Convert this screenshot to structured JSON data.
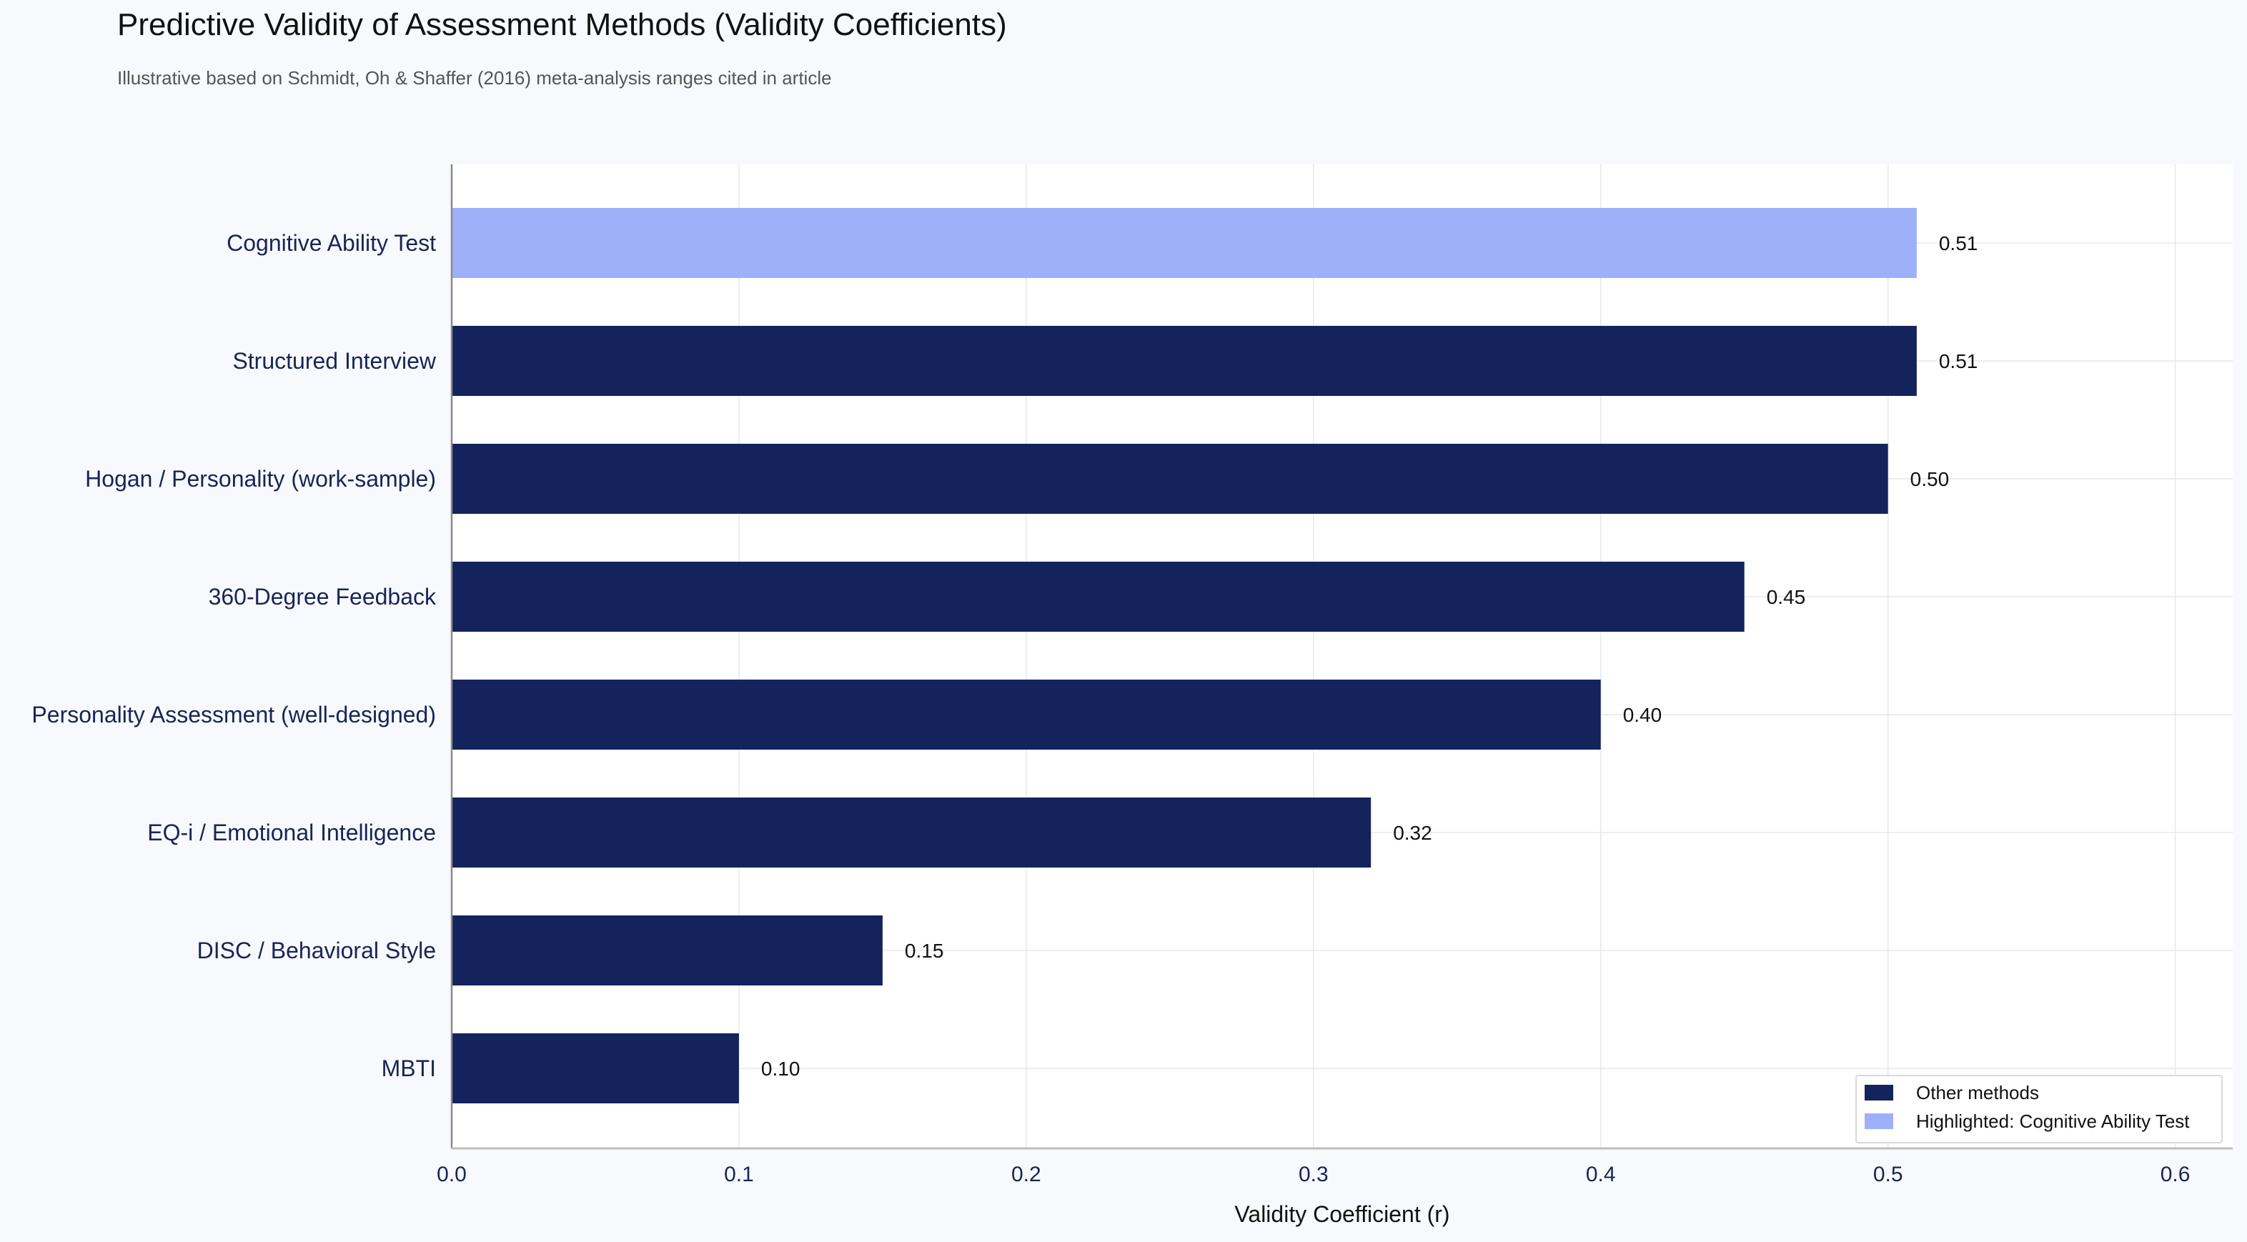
{
  "title": "Predictive Validity of Assessment Methods (Validity Coefficients)",
  "subtitle": "Illustrative based on Schmidt, Oh & Shaffer (2016) meta-analysis ranges cited in article",
  "chart_data": {
    "type": "bar",
    "orientation": "horizontal",
    "categories": [
      "Cognitive Ability Test",
      "Structured Interview",
      "Hogan / Personality (work-sample)",
      "360-Degree Feedback",
      "Personality Assessment (well-designed)",
      "EQ-i / Emotional Intelligence",
      "DISC / Behavioral Style",
      "MBTI"
    ],
    "values": [
      0.51,
      0.51,
      0.5,
      0.45,
      0.4,
      0.32,
      0.15,
      0.1
    ],
    "value_labels": [
      "0.51",
      "0.51",
      "0.50",
      "0.45",
      "0.40",
      "0.32",
      "0.15",
      "0.10"
    ],
    "highlighted": [
      true,
      false,
      false,
      false,
      false,
      false,
      false,
      false
    ],
    "xlabel": "Validity Coefficient (r)",
    "ylabel": "",
    "xlim": [
      0,
      0.62
    ],
    "xticks": [
      0.0,
      0.1,
      0.2,
      0.3,
      0.4,
      0.5,
      0.6
    ],
    "xtick_labels": [
      "0.0",
      "0.1",
      "0.2",
      "0.3",
      "0.4",
      "0.5",
      "0.6"
    ],
    "grid": true,
    "legend": {
      "placement": "bottom-right",
      "entries": [
        {
          "label": "Other methods",
          "color": "#14235c"
        },
        {
          "label": "Highlighted: Cognitive Ability Test",
          "color": "#9eb0f8"
        }
      ]
    },
    "colors": {
      "default": "#14235c",
      "highlight": "#9eb0f8",
      "plot_bg": "#ffffff",
      "grid": "#e6e8ee"
    }
  }
}
